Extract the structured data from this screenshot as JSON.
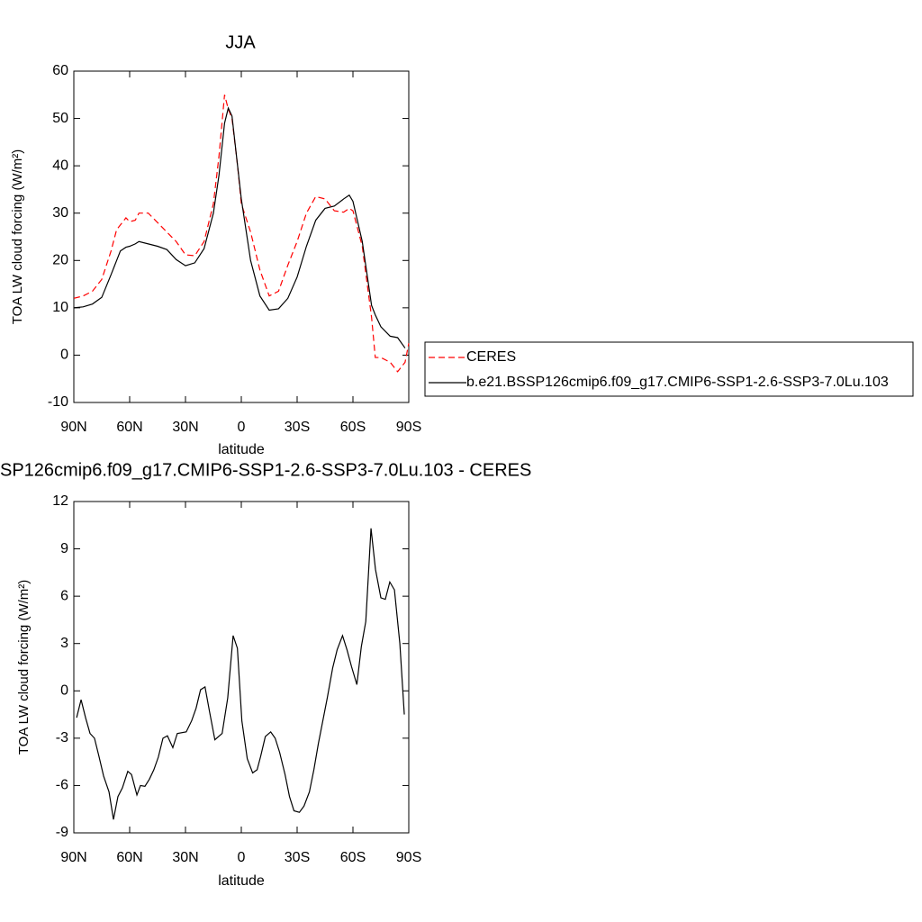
{
  "chart_data": [
    {
      "type": "line",
      "title": "JJA",
      "xlabel": "latitude",
      "ylabel": "TOA LW cloud forcing (W/m²)",
      "xlim": [
        90,
        -90
      ],
      "xticks": [
        {
          "value": 90,
          "label": "90N"
        },
        {
          "value": 60,
          "label": "60N"
        },
        {
          "value": 30,
          "label": "30N"
        },
        0,
        {
          "value": -30,
          "label": "30S"
        },
        {
          "value": -60,
          "label": "60S"
        },
        {
          "value": -90,
          "label": "90S"
        }
      ],
      "ylim": [
        -10,
        60
      ],
      "yticks": [
        -10,
        0,
        10,
        20,
        30,
        40,
        50,
        60
      ],
      "x": [
        90,
        85,
        80,
        75,
        70,
        67,
        65,
        62,
        60,
        57,
        55,
        50,
        45,
        40,
        35,
        30,
        25,
        20,
        15,
        12,
        9,
        7,
        5,
        2,
        0,
        -5,
        -10,
        -15,
        -20,
        -25,
        -30,
        -35,
        -40,
        -45,
        -50,
        -55,
        -58,
        -60,
        -65,
        -70,
        -72,
        -75,
        -80,
        -84,
        -88,
        -90
      ],
      "series": [
        {
          "name": "CERES",
          "color": "#ff0000",
          "dashed": true,
          "values": [
            12,
            12.5,
            13.5,
            16,
            22,
            26.5,
            27.5,
            29,
            28.2,
            28.5,
            30,
            30,
            28,
            26,
            24,
            21.2,
            21,
            24,
            32,
            42,
            55,
            52,
            50,
            40,
            32,
            26,
            18,
            12.5,
            13.5,
            19,
            24,
            30,
            33.5,
            33,
            30.5,
            30.2,
            31,
            30.5,
            23,
            8,
            -0.5,
            -0.5,
            -1.5,
            -3.5,
            -1.5,
            2.5
          ]
        },
        {
          "name": "b.e21.BSSP126cmip6.f09_g17.CMIP6-SSP1-2.6-SSP3-7.0Lu.103",
          "color": "#000000",
          "dashed": false,
          "values": [
            10,
            10.2,
            10.8,
            12.2,
            17,
            20,
            22,
            22.8,
            23,
            23.5,
            24,
            23.5,
            23,
            22.3,
            20.2,
            18.9,
            19.5,
            22.5,
            30,
            38,
            49,
            52.2,
            50.5,
            40,
            33,
            20,
            12.5,
            9.5,
            9.8,
            12,
            16.5,
            23,
            28.5,
            31,
            31.5,
            33,
            33.8,
            32.5,
            24,
            10.5,
            8.5,
            6,
            4,
            3.7,
            1.5,
            null
          ]
        }
      ]
    },
    {
      "type": "line",
      "title": "SP126cmip6.f09_g17.CMIP6-SSP1-2.6-SSP3-7.0Lu.103 - CERES",
      "xlabel": "latitude",
      "ylabel": "TOA LW cloud forcing (W/m²)",
      "xlim": [
        90,
        -90
      ],
      "xticks": [
        {
          "value": 90,
          "label": "90N"
        },
        {
          "value": 60,
          "label": "60N"
        },
        {
          "value": 30,
          "label": "30N"
        },
        0,
        {
          "value": -30,
          "label": "30S"
        },
        {
          "value": -60,
          "label": "60S"
        },
        {
          "value": -90,
          "label": "90S"
        }
      ],
      "ylim": [
        -9,
        12
      ],
      "yticks": [
        -9,
        -6,
        -3,
        0,
        3,
        6,
        9,
        12
      ],
      "x": [
        88.5,
        86.1,
        83.7,
        81.3,
        78.9,
        76.5,
        74.0,
        71.1,
        68.7,
        66.3,
        63.9,
        61.0,
        59.0,
        56.1,
        54.2,
        51.8,
        49.4,
        47.0,
        44.6,
        42.1,
        39.7,
        36.8,
        34.4,
        29.6,
        26.7,
        24.3,
        21.9,
        19.5,
        17.1,
        14.2,
        10.3,
        7.3,
        4.4,
        2.1,
        -0.3,
        -3.2,
        -6.1,
        -8.5,
        -10.4,
        -12.9,
        -15.8,
        -18.2,
        -20.6,
        -23.5,
        -25.9,
        -28.3,
        -31.2,
        -33.7,
        -36.6,
        -39.0,
        -41.4,
        -43.8,
        -46.2,
        -49.1,
        -51.5,
        -54.4,
        -56.8,
        -59.2,
        -62.1,
        -64.5,
        -66.9,
        -69.7,
        -72.1,
        -75.0,
        -77.4,
        -79.8,
        -82.3,
        -85.2,
        -87.6
      ],
      "series": [
        {
          "color": "#000000",
          "dashed": false,
          "values": [
            -1.7,
            -0.56,
            -1.7,
            -2.7,
            -3.0,
            -4.15,
            -5.4,
            -6.4,
            -8.15,
            -6.7,
            -6.15,
            -5.1,
            -5.3,
            -6.6,
            -6.0,
            -6.05,
            -5.6,
            -5.0,
            -4.2,
            -3.0,
            -2.85,
            -3.6,
            -2.7,
            -2.6,
            -1.9,
            -1.1,
            0.07,
            0.25,
            -1.3,
            -3.1,
            -2.7,
            -0.45,
            3.5,
            2.7,
            -1.9,
            -4.3,
            -5.2,
            -5.0,
            -4.15,
            -2.9,
            -2.6,
            -3.0,
            -3.9,
            -5.3,
            -6.7,
            -7.6,
            -7.7,
            -7.3,
            -6.4,
            -5.0,
            -3.35,
            -1.9,
            -0.45,
            1.45,
            2.6,
            3.5,
            2.6,
            1.55,
            0.4,
            2.8,
            4.4,
            10.3,
            7.7,
            5.9,
            5.8,
            6.9,
            6.4,
            3.0,
            -1.5
          ]
        }
      ]
    }
  ]
}
